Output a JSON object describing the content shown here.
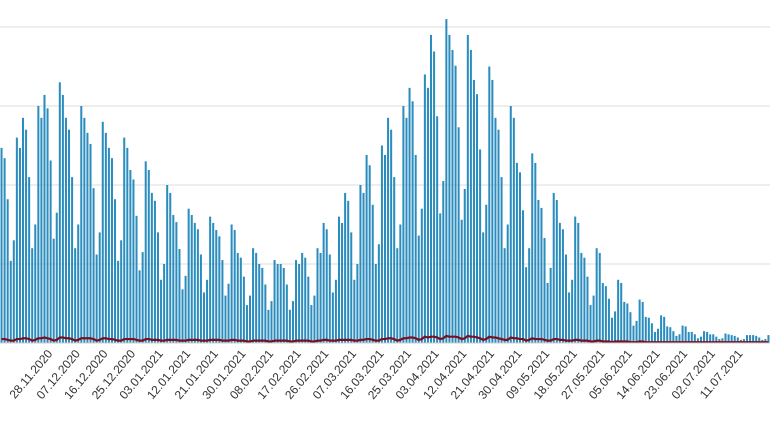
{
  "chart_data": {
    "type": "bar",
    "categories": [
      null,
      null,
      null,
      null,
      null,
      null,
      null,
      null,
      null,
      null,
      null,
      null,
      null,
      null,
      null,
      null,
      "28.11.2020",
      null,
      null,
      null,
      null,
      null,
      null,
      null,
      null,
      "07.12.2020",
      null,
      null,
      null,
      null,
      null,
      null,
      null,
      null,
      "16.12.2020",
      null,
      null,
      null,
      null,
      null,
      null,
      null,
      null,
      "25.12.2020",
      null,
      null,
      null,
      null,
      null,
      null,
      null,
      null,
      "03.01.2021",
      null,
      null,
      null,
      null,
      null,
      null,
      null,
      null,
      "12.01.2021",
      null,
      null,
      null,
      null,
      null,
      null,
      null,
      null,
      "21.01.2021",
      null,
      null,
      null,
      null,
      null,
      null,
      null,
      null,
      "30.01.2021",
      null,
      null,
      null,
      null,
      null,
      null,
      null,
      null,
      "08.02.2021",
      null,
      null,
      null,
      null,
      null,
      null,
      null,
      null,
      "17.02.2021",
      null,
      null,
      null,
      null,
      null,
      null,
      null,
      null,
      "26.02.2021",
      null,
      null,
      null,
      null,
      null,
      null,
      null,
      null,
      "07.03.2021",
      null,
      null,
      null,
      null,
      null,
      null,
      null,
      null,
      "16.03.2021",
      null,
      null,
      null,
      null,
      null,
      null,
      null,
      null,
      "25.03.2021",
      null,
      null,
      null,
      null,
      null,
      null,
      null,
      null,
      "03.04.2021",
      null,
      null,
      null,
      null,
      null,
      null,
      null,
      null,
      "12.04.2021",
      null,
      null,
      null,
      null,
      null,
      null,
      null,
      null,
      "21.04.2021",
      null,
      null,
      null,
      null,
      null,
      null,
      null,
      null,
      "30.04.2021",
      null,
      null,
      null,
      null,
      null,
      null,
      null,
      null,
      "09.05.2021",
      null,
      null,
      null,
      null,
      null,
      null,
      null,
      null,
      "18.05.2021",
      null,
      null,
      null,
      null,
      null,
      null,
      null,
      null,
      "27.05.2021",
      null,
      null,
      null,
      null,
      null,
      null,
      null,
      null,
      "05.06.2021",
      null,
      null,
      null,
      null,
      null,
      null,
      null,
      null,
      "14.06.2021",
      null,
      null,
      null,
      null,
      null,
      null,
      null,
      null,
      "23.06.2021",
      null,
      null,
      null,
      null,
      null,
      null,
      null,
      null,
      "02.07.2021",
      null,
      null,
      null,
      null,
      null,
      null,
      null,
      null,
      "11.07.2021",
      null,
      null,
      null,
      null,
      null,
      null,
      null,
      null,
      null
    ],
    "series": [
      {
        "color": "#2b8cbe",
        "values": [
          2.47,
          2.34,
          1.82,
          1.04,
          1.3,
          2.6,
          2.47,
          2.85,
          2.7,
          2.1,
          1.2,
          1.5,
          3.0,
          2.85,
          3.14,
          2.97,
          2.31,
          1.32,
          1.65,
          3.3,
          3.14,
          2.85,
          2.7,
          2.1,
          1.2,
          1.5,
          3.0,
          2.85,
          2.66,
          2.52,
          1.96,
          1.12,
          1.4,
          2.8,
          2.66,
          2.47,
          2.34,
          1.82,
          1.04,
          1.3,
          2.6,
          2.47,
          2.19,
          2.07,
          1.61,
          0.92,
          1.15,
          2.3,
          2.19,
          1.9,
          1.8,
          1.4,
          0.8,
          1.0,
          2.0,
          1.9,
          1.62,
          1.53,
          1.19,
          0.68,
          0.85,
          1.7,
          1.62,
          1.52,
          1.44,
          1.12,
          0.64,
          0.8,
          1.6,
          1.52,
          1.43,
          1.35,
          1.05,
          0.6,
          0.75,
          1.5,
          1.43,
          1.14,
          1.08,
          0.84,
          0.48,
          0.6,
          1.2,
          1.14,
          1.0,
          0.95,
          0.74,
          0.42,
          0.53,
          1.05,
          1.0,
          1.0,
          0.95,
          0.74,
          0.42,
          0.53,
          1.05,
          1.0,
          1.14,
          1.08,
          0.84,
          0.48,
          0.6,
          1.2,
          1.14,
          1.52,
          1.44,
          1.12,
          0.64,
          0.8,
          1.6,
          1.52,
          1.9,
          1.8,
          1.4,
          0.8,
          1.0,
          2.0,
          1.9,
          2.38,
          2.25,
          1.75,
          1.0,
          1.25,
          2.5,
          2.38,
          2.85,
          2.7,
          2.1,
          1.2,
          1.5,
          3.0,
          2.85,
          3.23,
          3.06,
          2.38,
          1.36,
          1.7,
          3.4,
          3.23,
          3.9,
          3.69,
          2.87,
          1.64,
          2.05,
          4.1,
          3.9,
          3.71,
          3.51,
          2.73,
          1.56,
          1.95,
          3.9,
          3.71,
          3.33,
          3.15,
          2.45,
          1.4,
          1.75,
          3.5,
          3.33,
          2.85,
          2.7,
          2.1,
          1.2,
          1.5,
          3.0,
          2.85,
          2.28,
          2.16,
          1.68,
          0.96,
          1.2,
          2.4,
          2.28,
          1.81,
          1.71,
          1.33,
          0.76,
          0.95,
          1.9,
          1.81,
          1.52,
          1.44,
          1.12,
          0.64,
          0.8,
          1.6,
          1.52,
          1.14,
          1.08,
          0.84,
          0.48,
          0.6,
          1.2,
          1.14,
          0.76,
          0.72,
          0.56,
          0.32,
          0.4,
          0.8,
          0.76,
          0.52,
          0.5,
          0.39,
          0.22,
          0.28,
          0.55,
          0.52,
          0.33,
          0.32,
          0.25,
          0.14,
          0.18,
          0.35,
          0.33,
          0.21,
          0.2,
          0.15,
          0.09,
          0.11,
          0.22,
          0.21,
          0.14,
          0.14,
          0.11,
          0.06,
          0.08,
          0.15,
          0.14,
          0.11,
          0.11,
          0.08,
          0.05,
          0.06,
          0.12,
          0.11,
          0.1,
          0.09,
          0.07,
          0.04,
          0.05,
          0.1,
          0.1,
          0.1,
          0.09,
          0.07,
          0.04,
          0.05,
          0.1
        ]
      },
      {
        "type": "line",
        "color": "#7a0f1f",
        "values": [
          0.05,
          0.05,
          0.04,
          0.03,
          0.03,
          0.05,
          0.05,
          0.06,
          0.06,
          0.05,
          0.03,
          0.04,
          0.06,
          0.06,
          0.07,
          0.06,
          0.05,
          0.03,
          0.04,
          0.07,
          0.07,
          0.06,
          0.06,
          0.05,
          0.03,
          0.04,
          0.06,
          0.06,
          0.06,
          0.06,
          0.05,
          0.03,
          0.04,
          0.06,
          0.06,
          0.05,
          0.05,
          0.04,
          0.03,
          0.03,
          0.05,
          0.05,
          0.05,
          0.05,
          0.04,
          0.03,
          0.03,
          0.05,
          0.05,
          0.04,
          0.04,
          0.04,
          0.03,
          0.03,
          0.04,
          0.04,
          0.04,
          0.04,
          0.03,
          0.03,
          0.03,
          0.04,
          0.04,
          0.04,
          0.04,
          0.03,
          0.03,
          0.03,
          0.04,
          0.04,
          0.04,
          0.04,
          0.03,
          0.03,
          0.03,
          0.04,
          0.04,
          0.03,
          0.03,
          0.03,
          0.02,
          0.02,
          0.03,
          0.03,
          0.03,
          0.03,
          0.03,
          0.02,
          0.02,
          0.03,
          0.03,
          0.03,
          0.03,
          0.03,
          0.02,
          0.02,
          0.03,
          0.03,
          0.03,
          0.03,
          0.03,
          0.02,
          0.02,
          0.03,
          0.03,
          0.04,
          0.04,
          0.03,
          0.03,
          0.03,
          0.04,
          0.04,
          0.04,
          0.04,
          0.04,
          0.03,
          0.03,
          0.04,
          0.04,
          0.05,
          0.05,
          0.04,
          0.03,
          0.03,
          0.05,
          0.05,
          0.06,
          0.06,
          0.05,
          0.03,
          0.04,
          0.06,
          0.06,
          0.07,
          0.07,
          0.06,
          0.04,
          0.05,
          0.08,
          0.07,
          0.08,
          0.08,
          0.07,
          0.05,
          0.06,
          0.09,
          0.08,
          0.08,
          0.08,
          0.07,
          0.05,
          0.06,
          0.09,
          0.08,
          0.08,
          0.07,
          0.06,
          0.04,
          0.05,
          0.08,
          0.07,
          0.07,
          0.06,
          0.05,
          0.04,
          0.04,
          0.07,
          0.06,
          0.06,
          0.05,
          0.05,
          0.03,
          0.04,
          0.06,
          0.05,
          0.05,
          0.05,
          0.04,
          0.03,
          0.03,
          0.05,
          0.05,
          0.04,
          0.04,
          0.03,
          0.03,
          0.03,
          0.04,
          0.04,
          0.03,
          0.03,
          0.03,
          0.02,
          0.02,
          0.03,
          0.03,
          0.02,
          0.02,
          0.02,
          0.01,
          0.02,
          0.02,
          0.02,
          0.02,
          0.02,
          0.01,
          0.01,
          0.01,
          0.02,
          0.02,
          0.01,
          0.01,
          0.01,
          0.01,
          0.01,
          0.01,
          0.01,
          0.01,
          0.01,
          0.01,
          0.01,
          0.01,
          0.01,
          0.01,
          0.01,
          0.01,
          0.01,
          0.01,
          0.01,
          0.01,
          0.01,
          0.01,
          0.01,
          0.01,
          0.01,
          0.01,
          0.01,
          0.01,
          0.01,
          0.01,
          0.01,
          0.01,
          0.01,
          0.01,
          0.01,
          0.01,
          0.01,
          0.01,
          0.01,
          0.01,
          0.01
        ]
      }
    ],
    "ylim": [
      0,
      4
    ],
    "grid": [
      1,
      2,
      3,
      4
    ]
  }
}
